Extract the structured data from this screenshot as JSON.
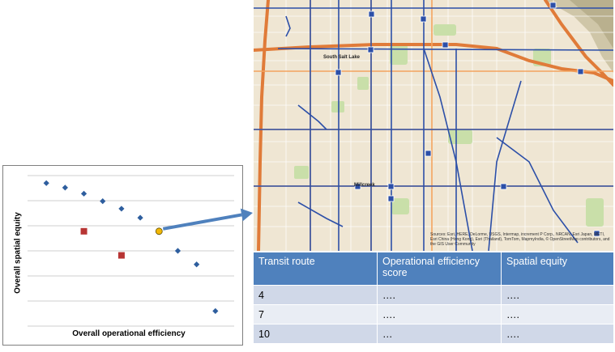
{
  "chart": {
    "ylabel": "Overall spatial equity",
    "xlabel": "Overall operational efficiency",
    "colors": {
      "diamond": "#2e5e9e",
      "square": "#b73534",
      "highlight": "#f2b705",
      "grid": "#bfbfbf"
    }
  },
  "chart_data": {
    "type": "scatter",
    "title": "",
    "xlabel": "Overall operational efficiency",
    "ylabel": "Overall spatial equity",
    "grid": true,
    "series": [
      {
        "marker": "diamond",
        "color": "#2e5e9e",
        "points": [
          [
            1,
            9.5
          ],
          [
            2,
            9.2
          ],
          [
            3,
            8.8
          ],
          [
            4,
            8.3
          ],
          [
            5,
            7.8
          ],
          [
            6,
            7.2
          ],
          [
            8,
            5.0
          ],
          [
            9,
            4.1
          ],
          [
            10,
            1.0
          ]
        ]
      },
      {
        "marker": "square",
        "color": "#b73534",
        "points": [
          [
            3,
            6.3
          ],
          [
            5,
            4.7
          ]
        ]
      },
      {
        "marker": "circle",
        "color": "#f2b705",
        "points": [
          [
            7,
            6.3
          ]
        ]
      }
    ]
  },
  "map": {
    "attribution": "Sources: Esri, HERE, DeLorme, USGS, Intermap, increment P Corp., NRCAN, Esri Japan, METI, Esri China (Hong Kong), Esri (Thailand), TomTom, MapmyIndia, © OpenStreetMap contributors, and the GIS User Community",
    "place_labels": [
      "South Salt Lake",
      "Millcreek"
    ],
    "colors": {
      "background": "#efe6d3",
      "route": "#2c4fa8",
      "highway": "#e07b39",
      "park": "#c9dfa9"
    }
  },
  "table": {
    "headers": [
      "Transit route",
      "Operational efficiency score",
      "Spatial equity"
    ],
    "rows": [
      [
        "4",
        "….",
        "…."
      ],
      [
        "7",
        "….",
        "…."
      ],
      [
        "10",
        "…",
        "…."
      ]
    ]
  },
  "arrow": {
    "color": "#4f81bd"
  }
}
